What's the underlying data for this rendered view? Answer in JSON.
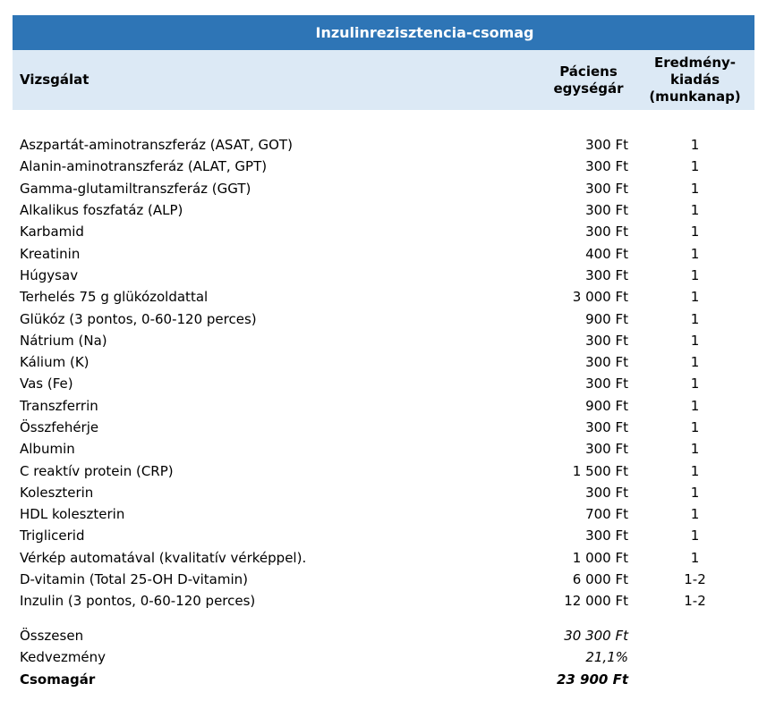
{
  "title": "Inzulinrezisztencia-csomag",
  "columns": {
    "test": "Vizsgálat",
    "price": "Páciens\negységár",
    "turnaround": "Eredmény-\nkiadás\n(munkanap)"
  },
  "rows": [
    {
      "name": "Aszpartát-aminotranszferáz (ASAT, GOT)",
      "price": "300 Ft",
      "days": "1"
    },
    {
      "name": "Alanin-aminotranszferáz (ALAT, GPT)",
      "price": "300 Ft",
      "days": "1"
    },
    {
      "name": "Gamma-glutamiltranszferáz (GGT)",
      "price": "300 Ft",
      "days": "1"
    },
    {
      "name": "Alkalikus foszfatáz (ALP)",
      "price": "300 Ft",
      "days": "1"
    },
    {
      "name": "Karbamid",
      "price": "300 Ft",
      "days": "1"
    },
    {
      "name": "Kreatinin",
      "price": "400 Ft",
      "days": "1"
    },
    {
      "name": "Húgysav",
      "price": "300 Ft",
      "days": "1"
    },
    {
      "name": "Terhelés 75 g glükózoldattal",
      "price": "3 000 Ft",
      "days": "1"
    },
    {
      "name": "Glükóz (3 pontos, 0-60-120 perces)",
      "price": "900 Ft",
      "days": "1"
    },
    {
      "name": "Nátrium (Na)",
      "price": "300 Ft",
      "days": "1"
    },
    {
      "name": "Kálium (K)",
      "price": "300 Ft",
      "days": "1"
    },
    {
      "name": "Vas (Fe)",
      "price": "300 Ft",
      "days": "1"
    },
    {
      "name": "Transzferrin",
      "price": "900 Ft",
      "days": "1"
    },
    {
      "name": "Összfehérje",
      "price": "300 Ft",
      "days": "1"
    },
    {
      "name": "Albumin",
      "price": "300 Ft",
      "days": "1"
    },
    {
      "name": "C reaktív protein (CRP)",
      "price": "1 500 Ft",
      "days": "1"
    },
    {
      "name": "Koleszterin",
      "price": "300 Ft",
      "days": "1"
    },
    {
      "name": "HDL koleszterin",
      "price": "700 Ft",
      "days": "1"
    },
    {
      "name": "Triglicerid",
      "price": "300 Ft",
      "days": "1"
    },
    {
      "name": "Vérkép automatával (kvalitatív vérképpel).",
      "price": "1 000 Ft",
      "days": "1"
    },
    {
      "name": "D-vitamin (Total 25-OH D-vitamin)",
      "price": "6 000 Ft",
      "days": "1-2"
    },
    {
      "name": "Inzulin (3 pontos, 0-60-120 perces)",
      "price": "12 000 Ft",
      "days": "1-2"
    }
  ],
  "summary": [
    {
      "label": "Összesen",
      "value": "30 300 Ft",
      "bold": false
    },
    {
      "label": "Kedvezmény",
      "value": "21,1%",
      "bold": false
    },
    {
      "label": "Csomagár",
      "value": "23 900 Ft",
      "bold": true
    }
  ],
  "colors": {
    "title_bar_bg": "#2E75B6",
    "title_text": "#FFFFFF",
    "header_band_bg": "#DCE9F5",
    "body_text": "#000000"
  }
}
